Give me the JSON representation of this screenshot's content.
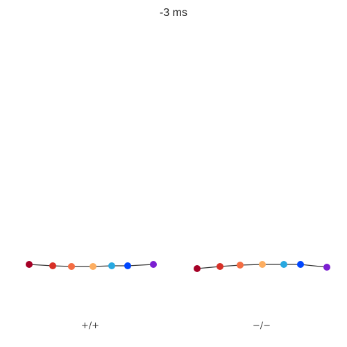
{
  "time_label": "-3 ms",
  "panels": [
    {
      "label": "+/+"
    },
    {
      "label": "−/−"
    }
  ],
  "marker_colors": [
    "#a50026",
    "#d73027",
    "#f46d43",
    "#fdae61",
    "#28a8e0",
    "#0047ff",
    "#7b1fd1"
  ],
  "line_color": "#333333"
}
